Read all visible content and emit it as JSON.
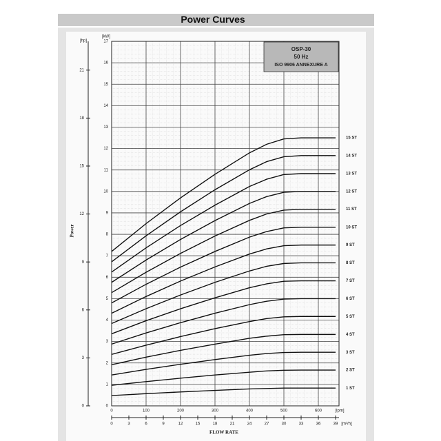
{
  "chart_data": {
    "type": "line",
    "title": "Power Curves",
    "annotations": [
      "OSP-30",
      "50 Hz",
      "ISO 9906 ANNEXURE A"
    ],
    "x_label": "FLOW RATE",
    "y_label": "Power",
    "x_unit": "[lpm]",
    "x2_unit": "[m³/h]",
    "y_unit": "[kW]",
    "y2_unit": "[hp]",
    "x": [
      0,
      100,
      200,
      300,
      400,
      450,
      500,
      550,
      650
    ],
    "xlim": [
      0,
      660
    ],
    "xticks": [
      0,
      100,
      200,
      300,
      400,
      500,
      600
    ],
    "x2lim": [
      0,
      39.6
    ],
    "x2ticks": [
      0,
      3,
      6,
      9,
      12,
      15,
      18,
      21,
      24,
      27,
      30,
      33,
      36,
      39
    ],
    "ylim": [
      0,
      17
    ],
    "yticks": [
      0,
      1,
      2,
      3,
      4,
      5,
      6,
      7,
      8,
      9,
      10,
      11,
      12,
      13,
      14,
      15,
      16,
      17
    ],
    "y2lim": [
      0,
      22.8
    ],
    "y2ticks": [
      0,
      3,
      6,
      9,
      12,
      15,
      18,
      21
    ],
    "grid": true,
    "series": [
      {
        "name": "1 ST",
        "color": "#111111",
        "values": [
          0.48,
          0.57,
          0.65,
          0.72,
          0.79,
          0.81,
          0.83,
          0.83,
          0.83
        ]
      },
      {
        "name": "2 ST",
        "color": "#111111",
        "values": [
          0.96,
          1.13,
          1.29,
          1.44,
          1.57,
          1.63,
          1.66,
          1.67,
          1.67
        ]
      },
      {
        "name": "3 ST",
        "color": "#111111",
        "values": [
          1.44,
          1.7,
          1.94,
          2.16,
          2.36,
          2.44,
          2.49,
          2.5,
          2.5
        ]
      },
      {
        "name": "4 ST",
        "color": "#111111",
        "values": [
          1.92,
          2.27,
          2.59,
          2.88,
          3.15,
          3.25,
          3.32,
          3.33,
          3.33
        ]
      },
      {
        "name": "5 ST",
        "color": "#111111",
        "values": [
          2.4,
          2.83,
          3.23,
          3.6,
          3.93,
          4.07,
          4.15,
          4.17,
          4.17
        ]
      },
      {
        "name": "6 ST",
        "color": "#111111",
        "values": [
          2.88,
          3.4,
          3.88,
          4.32,
          4.72,
          4.88,
          4.98,
          5,
          5
        ]
      },
      {
        "name": "7 ST",
        "color": "#111111",
        "values": [
          3.36,
          3.97,
          4.53,
          5.04,
          5.51,
          5.69,
          5.81,
          5.83,
          5.83
        ]
      },
      {
        "name": "8 ST",
        "color": "#111111",
        "values": [
          3.84,
          4.53,
          5.17,
          5.76,
          6.29,
          6.51,
          6.64,
          6.67,
          6.67
        ]
      },
      {
        "name": "9 ST",
        "color": "#111111",
        "values": [
          4.32,
          5.1,
          5.82,
          6.48,
          7.08,
          7.32,
          7.47,
          7.5,
          7.5
        ]
      },
      {
        "name": "10 ST",
        "color": "#111111",
        "values": [
          4.8,
          5.67,
          6.47,
          7.2,
          7.87,
          8.13,
          8.3,
          8.33,
          8.33
        ]
      },
      {
        "name": "11 ST",
        "color": "#111111",
        "values": [
          5.28,
          6.23,
          7.11,
          7.92,
          8.65,
          8.95,
          9.13,
          9.17,
          9.17
        ]
      },
      {
        "name": "12 ST",
        "color": "#111111",
        "values": [
          5.76,
          6.8,
          7.76,
          8.64,
          9.44,
          9.76,
          9.96,
          10,
          10
        ]
      },
      {
        "name": "13 ST",
        "color": "#111111",
        "values": [
          6.24,
          7.37,
          8.41,
          9.36,
          10.23,
          10.57,
          10.79,
          10.83,
          10.83
        ]
      },
      {
        "name": "14 ST",
        "color": "#111111",
        "values": [
          6.72,
          7.93,
          9.05,
          10.08,
          11.01,
          11.39,
          11.62,
          11.67,
          11.67
        ]
      },
      {
        "name": "15 ST",
        "color": "#111111",
        "values": [
          7.2,
          8.5,
          9.7,
          10.8,
          11.8,
          12.2,
          12.45,
          12.5,
          12.5
        ]
      }
    ]
  }
}
